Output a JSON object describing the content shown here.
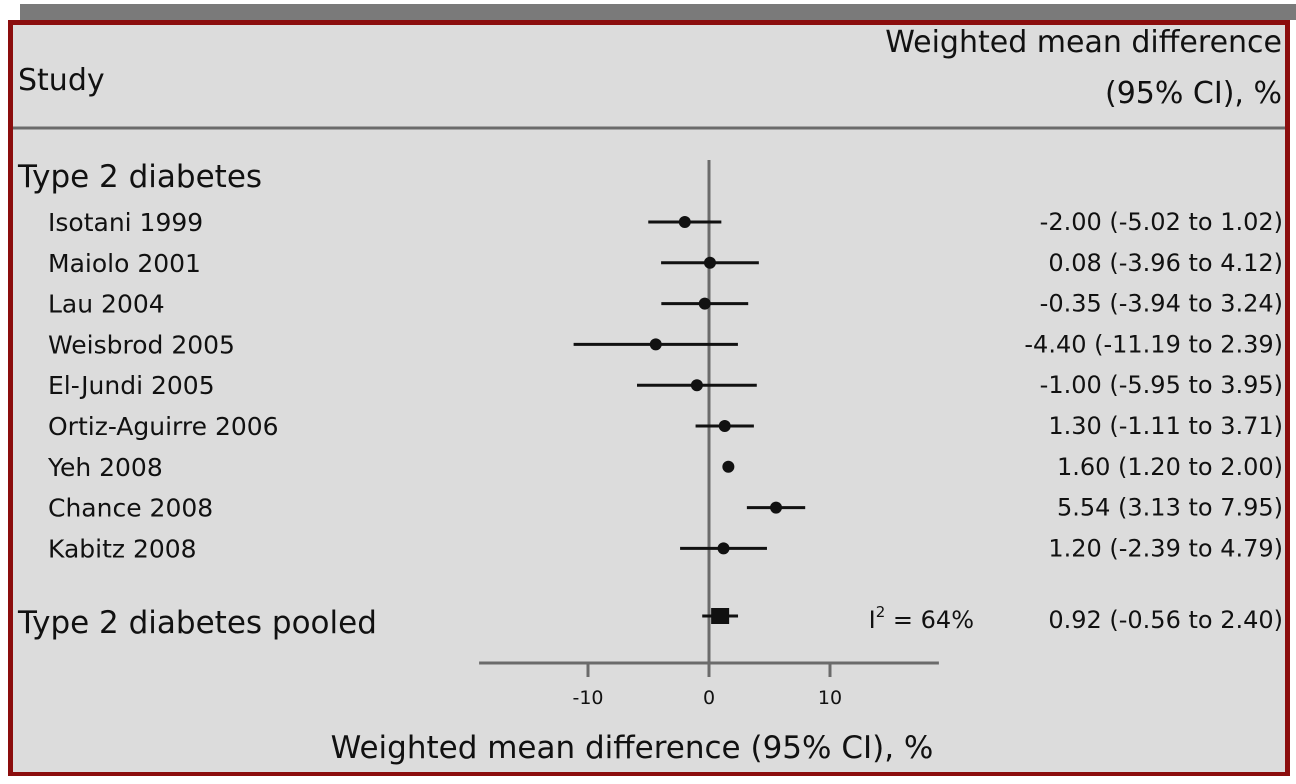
{
  "header": {
    "study_label": "Study",
    "effect_label_line1": "Weighted mean difference",
    "effect_label_line2": "(95% CI), %"
  },
  "chart_data": {
    "type": "forest",
    "group": "Type 2 diabetes",
    "studies": [
      {
        "name": "Isotani 1999",
        "estimate": -2.0,
        "lower": -5.02,
        "upper": 1.02,
        "label": "-2.00 (-5.02 to 1.02)"
      },
      {
        "name": "Maiolo 2001",
        "estimate": 0.08,
        "lower": -3.96,
        "upper": 4.12,
        "label": "0.08 (-3.96 to 4.12)"
      },
      {
        "name": "Lau 2004",
        "estimate": -0.35,
        "lower": -3.94,
        "upper": 3.24,
        "label": "-0.35 (-3.94 to 3.24)"
      },
      {
        "name": "Weisbrod 2005",
        "estimate": -4.4,
        "lower": -11.19,
        "upper": 2.39,
        "label": "-4.40 (-11.19 to 2.39)"
      },
      {
        "name": "El-Jundi 2005",
        "estimate": -1.0,
        "lower": -5.95,
        "upper": 3.95,
        "label": "-1.00 (-5.95 to 3.95)"
      },
      {
        "name": "Ortiz-Aguirre 2006",
        "estimate": 1.3,
        "lower": -1.11,
        "upper": 3.71,
        "label": "1.30 (-1.11 to 3.71)"
      },
      {
        "name": "Yeh 2008",
        "estimate": 1.6,
        "lower": 1.2,
        "upper": 2.0,
        "label": "1.60 (1.20 to 2.00)"
      },
      {
        "name": "Chance 2008",
        "estimate": 5.54,
        "lower": 3.13,
        "upper": 7.95,
        "label": "5.54 (3.13 to 7.95)"
      },
      {
        "name": "Kabitz 2008",
        "estimate": 1.2,
        "lower": -2.39,
        "upper": 4.79,
        "label": "1.20 (-2.39 to 4.79)"
      }
    ],
    "pooled": {
      "name": "Type 2 diabetes pooled",
      "estimate": 0.92,
      "lower": -0.56,
      "upper": 2.4,
      "label": "0.92 (-0.56 to 2.40)",
      "heterogeneity_prefix": "I",
      "heterogeneity_sup": "2",
      "heterogeneity_value": " = 64%"
    },
    "xlim": [
      -19,
      19
    ],
    "x_ticks": [
      -10,
      0,
      10
    ],
    "x_tick_labels": [
      "-10",
      "0",
      "10"
    ],
    "xlabel": "Weighted mean difference (95% CI), %",
    "colors": {
      "background": "#dcdcdc",
      "border": "#8b0d0d",
      "frame_top": "#7a7a7a",
      "marks": "#111111",
      "axis": "#6b6b6b"
    }
  }
}
